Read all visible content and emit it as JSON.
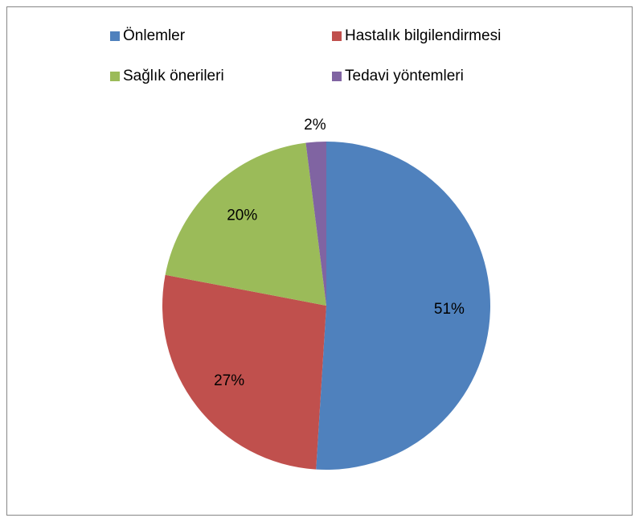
{
  "chart_data": {
    "type": "pie",
    "categories": [
      "Önlemler",
      "Hastalık bilgilendirmesi",
      "Sağlık önerileri",
      "Tedavi yöntemleri"
    ],
    "values": [
      51,
      27,
      20,
      2
    ],
    "value_labels": [
      "51%",
      "27%",
      "20%",
      "2%"
    ],
    "colors": [
      "#4f81bd",
      "#c0504d",
      "#9bbb59",
      "#8064a2"
    ],
    "legend": "top"
  }
}
